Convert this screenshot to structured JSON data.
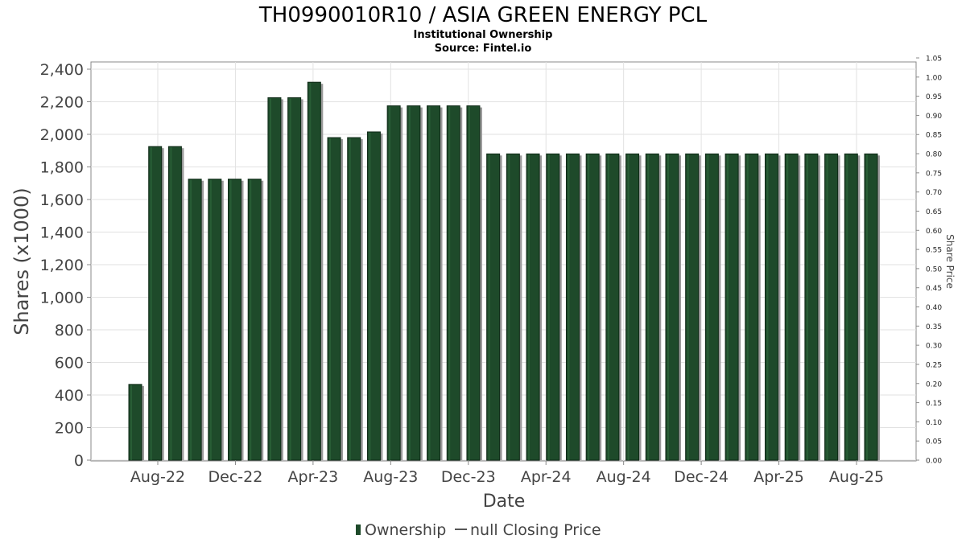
{
  "chart_data": {
    "type": "bar",
    "title": "TH0990010R10 / ASIA GREEN ENERGY PCL",
    "subtitle1": "Institutional Ownership",
    "subtitle2": "Source: Fintel.io",
    "xlabel": "Date",
    "ylabel": "Shares (x1000)",
    "y2label": "Share Price",
    "ylim": [
      0,
      2400
    ],
    "y2lim": [
      0,
      1.05
    ],
    "y_ticks": [
      "0",
      "200",
      "400",
      "600",
      "800",
      "1,000",
      "1,200",
      "1,400",
      "1,600",
      "1,800",
      "2,000",
      "2,200",
      "2,400"
    ],
    "y2_ticks": [
      "0.00",
      "0.05",
      "0.10",
      "0.15",
      "0.20",
      "0.25",
      "0.30",
      "0.35",
      "0.40",
      "0.45",
      "0.50",
      "0.55",
      "0.60",
      "0.65",
      "0.70",
      "0.75",
      "0.80",
      "0.85",
      "0.90",
      "0.95",
      "1.00",
      "1.05"
    ],
    "x_ticks": [
      {
        "label": "Aug-22",
        "date": "2022-08"
      },
      {
        "label": "Dec-22",
        "date": "2022-12"
      },
      {
        "label": "Apr-23",
        "date": "2023-04"
      },
      {
        "label": "Aug-23",
        "date": "2023-08"
      },
      {
        "label": "Dec-23",
        "date": "2023-12"
      },
      {
        "label": "Apr-24",
        "date": "2024-04"
      },
      {
        "label": "Aug-24",
        "date": "2024-08"
      },
      {
        "label": "Dec-24",
        "date": "2024-12"
      },
      {
        "label": "Apr-25",
        "date": "2025-04"
      },
      {
        "label": "Aug-25",
        "date": "2025-08"
      }
    ],
    "grid": true,
    "legend_position": "bottom-center",
    "series": [
      {
        "name": "Ownership",
        "color": "#1e4a2a",
        "values": [
          465,
          1925,
          1925,
          1725,
          1725,
          1725,
          1725,
          2225,
          2225,
          2320,
          1980,
          1980,
          2015,
          2175,
          2175,
          2175,
          2175,
          2175,
          1880,
          1880,
          1880,
          1880,
          1880,
          1880,
          1880,
          1880,
          1880,
          1880,
          1880,
          1880,
          1880,
          1880,
          1880,
          1880,
          1880,
          1880,
          1880,
          1880
        ]
      },
      {
        "name": "null Closing Price",
        "color": "#555555",
        "values": []
      }
    ]
  }
}
